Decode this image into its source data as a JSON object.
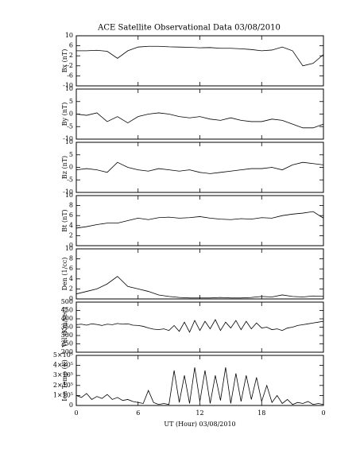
{
  "title": "ACE Satellite Observational Data   03/08/2010",
  "chart_data": [
    {
      "type": "line",
      "ylabel": "Bx (nT)",
      "color": "#000000",
      "x": [
        0,
        1,
        2,
        3,
        4,
        5,
        6,
        7,
        8,
        9,
        10,
        11,
        12,
        13,
        14,
        15,
        16,
        17,
        18,
        19,
        20,
        21,
        22,
        23,
        24
      ],
      "values": [
        4,
        4,
        4.2,
        3.8,
        1,
        4,
        5.5,
        5.8,
        5.8,
        5.6,
        5.5,
        5.4,
        5.2,
        5.3,
        5,
        5,
        4.8,
        4.5,
        4,
        4.3,
        5.5,
        4,
        -2,
        -1,
        2.5
      ],
      "xlim": [
        0,
        24
      ],
      "ylim": [
        -10,
        10
      ],
      "yticks": [
        -10,
        -6,
        -2,
        2,
        6,
        10
      ]
    },
    {
      "type": "line",
      "ylabel": "By (nT)",
      "color": "#000000",
      "x": [
        0,
        1,
        2,
        3,
        4,
        5,
        6,
        7,
        8,
        9,
        10,
        11,
        12,
        13,
        14,
        15,
        16,
        17,
        18,
        19,
        20,
        21,
        22,
        23,
        24
      ],
      "values": [
        0,
        -0.5,
        0.5,
        -3,
        -1,
        -3.5,
        -1,
        0,
        0.5,
        0,
        -1,
        -1.5,
        -1,
        -2,
        -2.5,
        -1.5,
        -2.5,
        -3,
        -3,
        -2,
        -2.5,
        -4,
        -5.5,
        -5.5,
        -4
      ],
      "xlim": [
        0,
        24
      ],
      "ylim": [
        -10,
        10
      ],
      "yticks": [
        -10,
        -5,
        0,
        5,
        10
      ]
    },
    {
      "type": "line",
      "ylabel": "Bz (nT)",
      "color": "#000000",
      "x": [
        0,
        1,
        2,
        3,
        4,
        5,
        6,
        7,
        8,
        9,
        10,
        11,
        12,
        13,
        14,
        15,
        16,
        17,
        18,
        19,
        20,
        21,
        22,
        23,
        24
      ],
      "values": [
        -1,
        -0.5,
        -1,
        -2,
        2,
        0,
        -1,
        -1.5,
        -0.5,
        -1,
        -1.5,
        -1,
        -2,
        -2.5,
        -2,
        -1.5,
        -1,
        -0.5,
        -0.5,
        0,
        -1,
        1,
        2,
        1.5,
        1
      ],
      "xlim": [
        0,
        24
      ],
      "ylim": [
        -10,
        10
      ],
      "yticks": [
        -10,
        -5,
        0,
        5,
        10
      ]
    },
    {
      "type": "line",
      "ylabel": "Bt (nT)",
      "color": "#000000",
      "x": [
        0,
        1,
        2,
        3,
        4,
        5,
        6,
        7,
        8,
        9,
        10,
        11,
        12,
        13,
        14,
        15,
        16,
        17,
        18,
        19,
        20,
        21,
        22,
        23,
        24
      ],
      "values": [
        3.5,
        3.8,
        4.2,
        4.5,
        4.5,
        5,
        5.5,
        5.2,
        5.6,
        5.7,
        5.5,
        5.6,
        5.8,
        5.5,
        5.3,
        5.2,
        5.4,
        5.3,
        5.6,
        5.5,
        6,
        6.3,
        6.5,
        6.8,
        5.5
      ],
      "xlim": [
        0,
        24
      ],
      "ylim": [
        0,
        10
      ],
      "yticks": [
        0,
        2,
        4,
        6,
        8,
        10
      ]
    },
    {
      "type": "line",
      "ylabel": "Den (1/cc)",
      "color": "#000000",
      "x": [
        0,
        1,
        2,
        3,
        4,
        5,
        6,
        7,
        8,
        9,
        10,
        11,
        12,
        13,
        14,
        15,
        16,
        17,
        18,
        19,
        20,
        21,
        22,
        23,
        24
      ],
      "values": [
        1,
        1.5,
        2,
        3,
        4.5,
        2.5,
        2,
        1.5,
        0.8,
        0.5,
        0.3,
        0.2,
        0.2,
        0.2,
        0.3,
        0.2,
        0.2,
        0.3,
        0.5,
        0.4,
        0.8,
        0.5,
        0.4,
        0.6,
        0.5
      ],
      "xlim": [
        0,
        24
      ],
      "ylim": [
        0,
        10
      ],
      "yticks": [
        0,
        2,
        4,
        6,
        8,
        10
      ]
    },
    {
      "type": "line",
      "ylabel": "Vel (Km/sec)",
      "color": "#000000",
      "x": [
        0,
        0.5,
        1,
        1.5,
        2,
        2.5,
        3,
        3.5,
        4,
        4.5,
        5,
        5.5,
        6,
        6.5,
        7,
        7.5,
        8,
        8.5,
        9,
        9.5,
        10,
        10.5,
        11,
        11.5,
        12,
        12.5,
        13,
        13.5,
        14,
        14.5,
        15,
        15.5,
        16,
        16.5,
        17,
        17.5,
        18,
        18.5,
        19,
        19.5,
        20,
        20.5,
        21,
        21.5,
        22,
        22.5,
        23,
        23.5,
        24
      ],
      "values": [
        365,
        368,
        362,
        370,
        366,
        360,
        368,
        365,
        372,
        368,
        370,
        362,
        360,
        355,
        345,
        338,
        335,
        340,
        330,
        360,
        325,
        380,
        320,
        390,
        330,
        385,
        340,
        395,
        330,
        380,
        345,
        390,
        335,
        385,
        340,
        375,
        345,
        350,
        335,
        340,
        330,
        345,
        350,
        360,
        365,
        370,
        375,
        380,
        385
      ],
      "xlim": [
        0,
        24
      ],
      "ylim": [
        200,
        500
      ],
      "yticks": [
        200,
        250,
        300,
        350,
        400,
        450,
        500
      ]
    },
    {
      "type": "line",
      "ylabel": "Ion Temp (K)",
      "color": "#000000",
      "x": [
        0,
        0.5,
        1,
        1.5,
        2,
        2.5,
        3,
        3.5,
        4,
        4.5,
        5,
        5.5,
        6,
        6.5,
        7,
        7.5,
        8,
        8.5,
        9,
        9.5,
        10,
        10.5,
        11,
        11.5,
        12,
        12.5,
        13,
        13.5,
        14,
        14.5,
        15,
        15.5,
        16,
        16.5,
        17,
        17.5,
        18,
        18.5,
        19,
        19.5,
        20,
        20.5,
        21,
        21.5,
        22,
        22.5,
        23,
        23.5,
        24
      ],
      "values": [
        100000,
        80000,
        120000,
        60000,
        90000,
        70000,
        110000,
        60000,
        80000,
        50000,
        60000,
        40000,
        30000,
        20000,
        150000,
        30000,
        10000,
        20000,
        10000,
        350000,
        30000,
        300000,
        20000,
        380000,
        40000,
        350000,
        20000,
        300000,
        50000,
        380000,
        20000,
        320000,
        40000,
        300000,
        60000,
        280000,
        40000,
        200000,
        30000,
        100000,
        20000,
        60000,
        10000,
        30000,
        20000,
        40000,
        10000,
        20000,
        10000
      ],
      "xlim": [
        0,
        24
      ],
      "ylim": [
        0,
        500000
      ],
      "yticks": [
        0,
        {
          "value": 100000,
          "label": "1×10⁵"
        },
        {
          "value": 200000,
          "label": "2×10⁵"
        },
        {
          "value": 300000,
          "label": "3×10⁵"
        },
        {
          "value": 400000,
          "label": "4×10⁵"
        },
        {
          "value": 500000,
          "label": "5×10⁵"
        }
      ],
      "xlabel": "UT (Hour)  03/08/2010",
      "xticks": [
        0,
        6,
        12,
        18,
        {
          "value": 24,
          "label": "0"
        }
      ]
    }
  ]
}
